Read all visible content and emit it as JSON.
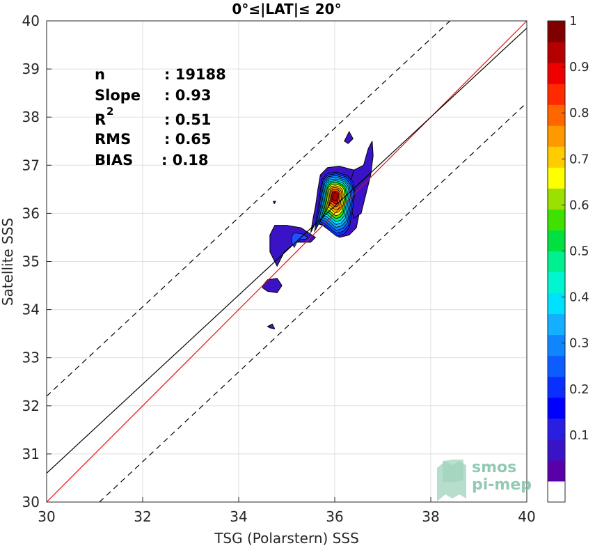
{
  "chart_data": {
    "type": "heatmap",
    "title": "0°≤|LAT|≤ 20°",
    "xlabel": "TSG (Polarstern) SSS",
    "ylabel": "Satellite SSS",
    "xlim": [
      30,
      40
    ],
    "ylim": [
      30,
      40
    ],
    "xticks": [
      "30",
      "32",
      "34",
      "36",
      "38",
      "40"
    ],
    "yticks": [
      "30",
      "31",
      "32",
      "33",
      "34",
      "35",
      "36",
      "37",
      "38",
      "39",
      "40"
    ],
    "grid": true,
    "stats": [
      {
        "label": "n",
        "value": ": 19188"
      },
      {
        "label": "Slope",
        "value": ": 0.93"
      },
      {
        "label": "R",
        "sup": "2",
        "value": ": 0.51"
      },
      {
        "label": "RMS",
        "value": ": 0.65"
      },
      {
        "label": "BIAS",
        "value": ": 0.18"
      }
    ],
    "lines": [
      {
        "name": "identity",
        "color": "#ff0000",
        "x": [
          30,
          40
        ],
        "y": [
          30,
          40
        ]
      },
      {
        "name": "regression",
        "color": "#000000",
        "x": [
          30,
          40
        ],
        "y": [
          30.6,
          39.85
        ]
      },
      {
        "name": "upper-bound",
        "color": "#000000",
        "dash": true,
        "x": [
          30,
          38.4
        ],
        "y": [
          32.2,
          40
        ]
      },
      {
        "name": "lower-bound",
        "color": "#000000",
        "dash": true,
        "x": [
          31.1,
          40
        ],
        "y": [
          30,
          38.3
        ]
      }
    ],
    "density_peak": {
      "x": 36.0,
      "y": 36.35,
      "value": 1.0
    },
    "colorbar": {
      "ticks": [
        "0.1",
        "0.2",
        "0.3",
        "0.4",
        "0.5",
        "0.6",
        "0.7",
        "0.8",
        "0.9",
        "1"
      ],
      "levels": [
        0,
        0.05,
        0.1,
        0.15,
        0.2,
        0.25,
        0.3,
        0.35,
        0.4,
        0.45,
        0.5,
        0.55,
        0.6,
        0.65,
        0.7,
        0.75,
        0.8,
        0.85,
        0.9,
        0.95,
        1.0
      ],
      "colors": [
        "#ffffff",
        "#5a00a8",
        "#3a13c6",
        "#2a1ee0",
        "#0000ff",
        "#0a30ff",
        "#0c5cff",
        "#0f86ff",
        "#14b0ff",
        "#00e0ff",
        "#00f5d0",
        "#00f090",
        "#00e040",
        "#40e000",
        "#9ae000",
        "#ffff00",
        "#ffcc00",
        "#ff9900",
        "#ff6600",
        "#ff2a00",
        "#ee0000",
        "#b40000",
        "#800000"
      ]
    },
    "blobs": [
      {
        "name": "main-cluster",
        "x": [
          35.6,
          35.65,
          35.7,
          35.85,
          36.1,
          36.4,
          36.55,
          36.6,
          36.55,
          36.5,
          36.45,
          36.3,
          36.1,
          35.95,
          35.75,
          35.6,
          35.5,
          35.55
        ],
        "y": [
          36.15,
          36.5,
          36.8,
          36.95,
          36.98,
          36.9,
          36.75,
          36.5,
          36.2,
          35.95,
          35.7,
          35.55,
          35.5,
          35.6,
          35.75,
          35.8,
          35.6,
          35.9
        ]
      },
      {
        "name": "right-tail",
        "x": [
          36.4,
          36.6,
          36.7,
          36.78,
          36.8,
          36.75,
          36.65,
          36.55,
          36.4,
          36.25
        ],
        "y": [
          36.9,
          37.0,
          37.35,
          37.5,
          37.2,
          36.8,
          36.4,
          36.0,
          35.9,
          36.4
        ]
      },
      {
        "name": "left-cluster",
        "x": [
          34.65,
          34.75,
          35.0,
          35.3,
          35.6,
          35.5,
          35.2,
          34.95,
          34.8,
          34.65
        ],
        "y": [
          35.55,
          35.75,
          35.75,
          35.7,
          35.5,
          35.4,
          35.4,
          35.2,
          34.9,
          35.2
        ]
      },
      {
        "name": "small-blob-1",
        "x": [
          34.5,
          34.6,
          34.8,
          34.9,
          34.8,
          34.6,
          34.5
        ],
        "y": [
          34.5,
          34.62,
          34.65,
          34.5,
          34.35,
          34.38,
          34.45
        ]
      },
      {
        "name": "small-blob-2",
        "x": [
          36.2,
          36.3,
          36.38,
          36.28,
          36.2
        ],
        "y": [
          37.5,
          37.7,
          37.55,
          37.45,
          37.5
        ]
      },
      {
        "name": "small-blob-3",
        "x": [
          34.6,
          34.7,
          34.75,
          34.65
        ],
        "y": [
          33.65,
          33.7,
          33.6,
          33.62
        ]
      },
      {
        "name": "small-blob-4",
        "x": [
          34.72,
          34.77,
          34.74
        ],
        "y": [
          36.25,
          36.25,
          36.2
        ]
      }
    ]
  },
  "logo": {
    "line1": "smos",
    "line2": "pi-mep"
  }
}
